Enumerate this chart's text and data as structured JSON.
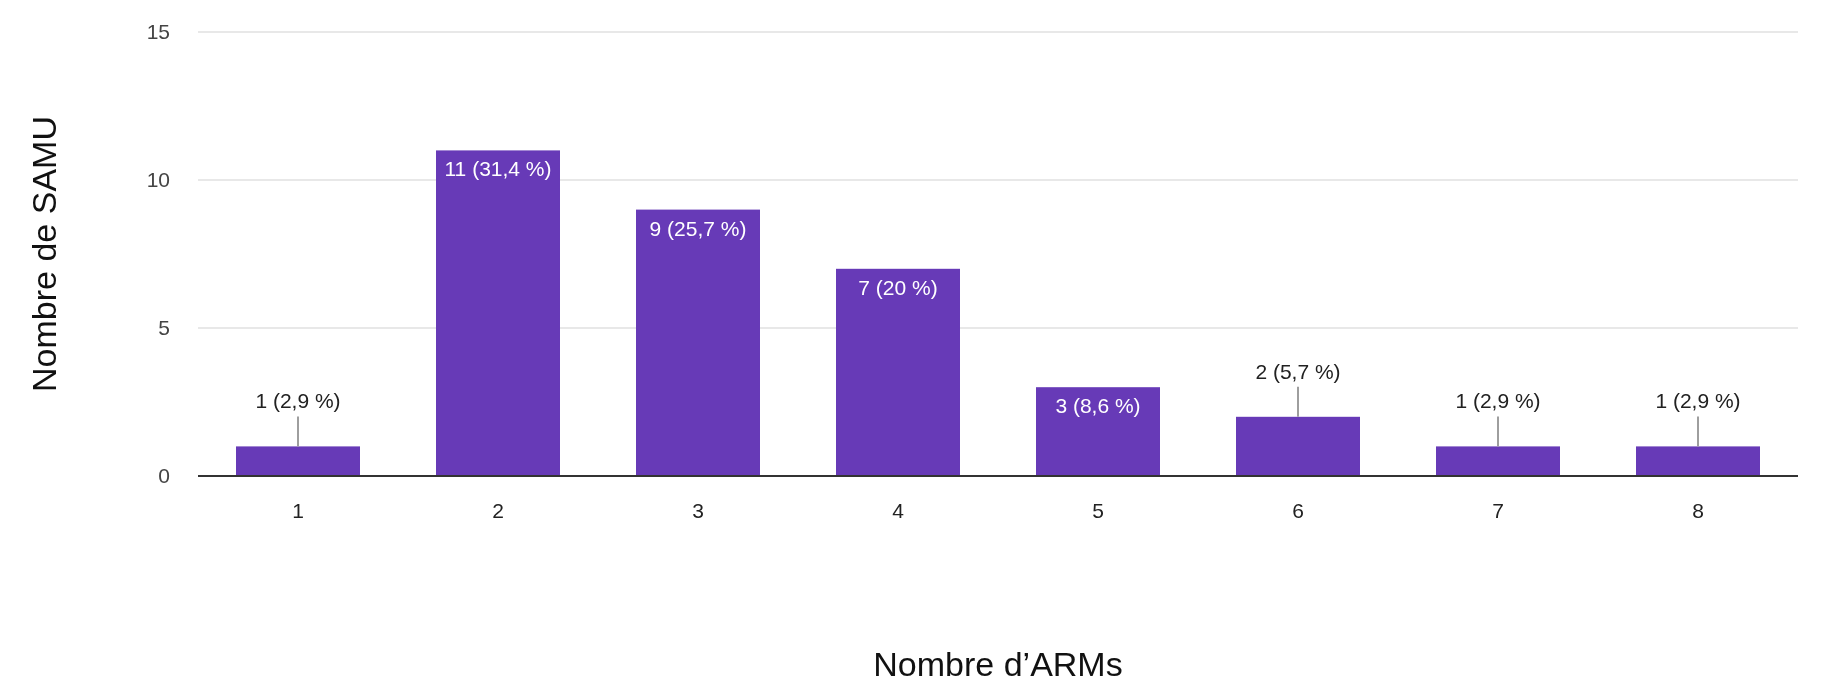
{
  "chart_data": {
    "type": "bar",
    "xlabel": "Nombre d’ARMs",
    "ylabel": "Nombre de SAMU",
    "categories": [
      "1",
      "2",
      "3",
      "4",
      "5",
      "6",
      "7",
      "8"
    ],
    "values": [
      1,
      11,
      9,
      7,
      3,
      2,
      1,
      1
    ],
    "value_labels": [
      "1 (2,9 %)",
      "11 (31,4 %)",
      "9 (25,7 %)",
      "7 (20 %)",
      "3 (8,6 %)",
      "2 (5,7 %)",
      "1 (2,9 %)",
      "1 (2,9 %)"
    ],
    "color": "#673ab7",
    "ylim": [
      0,
      15
    ],
    "yticks": [
      0,
      5,
      10,
      15
    ],
    "grid": "y"
  }
}
